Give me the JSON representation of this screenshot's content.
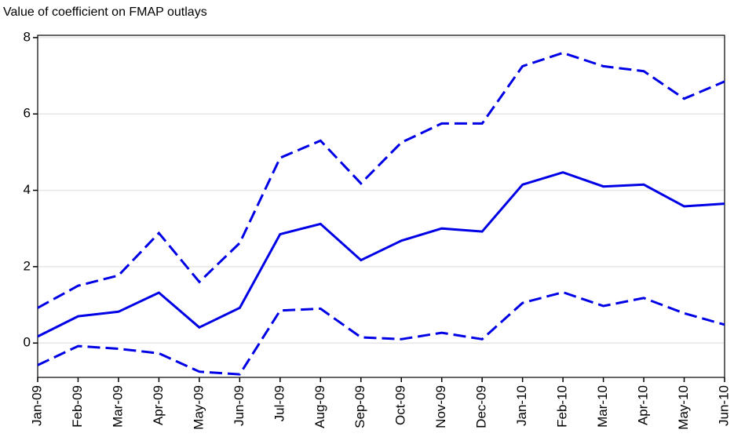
{
  "chart_data": {
    "type": "line",
    "title": "Value of coefficient on FMAP outlays",
    "categories": [
      "Jan-09",
      "Feb-09",
      "Mar-09",
      "Apr-09",
      "May-09",
      "Jun-09",
      "Jul-09",
      "Aug-09",
      "Sep-09",
      "Oct-09",
      "Nov-09",
      "Dec-09",
      "Jan-10",
      "Feb-10",
      "Mar-10",
      "Apr-10",
      "May-10",
      "Jun-10"
    ],
    "series": [
      {
        "color": "#0000e6",
        "style": "dashed",
        "values": [
          0.92,
          1.5,
          1.77,
          2.88,
          1.6,
          2.62,
          4.85,
          5.3,
          4.18,
          5.25,
          5.75,
          5.75,
          7.25,
          7.6,
          7.25,
          7.12,
          6.4,
          6.85
        ]
      },
      {
        "color": "#0000e6",
        "style": "solid",
        "values": [
          0.17,
          0.7,
          0.82,
          1.32,
          0.41,
          0.92,
          2.85,
          3.12,
          2.17,
          2.68,
          3.0,
          2.92,
          4.15,
          4.47,
          4.1,
          4.15,
          3.58,
          3.65
        ]
      },
      {
        "color": "#0000e6",
        "style": "dashed",
        "values": [
          -0.58,
          -0.08,
          -0.15,
          -0.27,
          -0.75,
          -0.82,
          0.85,
          0.9,
          0.15,
          0.1,
          0.27,
          0.1,
          1.05,
          1.33,
          0.97,
          1.18,
          0.78,
          0.48
        ]
      }
    ],
    "ylim": [
      -0.9,
      8.06
    ],
    "yticks": [
      0,
      2,
      4,
      6,
      8
    ],
    "grid": true
  }
}
